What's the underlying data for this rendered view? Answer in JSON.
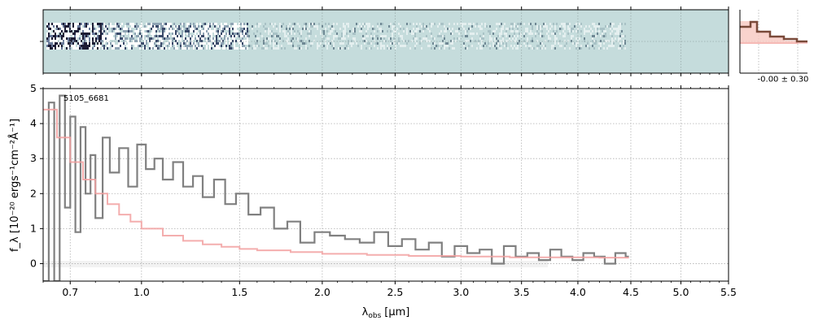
{
  "chart_data": [
    {
      "panel": "2d-spectrum",
      "type": "heatmap",
      "grid": true,
      "colors": {
        "background": "#c5dcdc",
        "bright": "#ffffff",
        "dark": "#1c1c35"
      }
    },
    {
      "panel": "1d-spectrum",
      "type": "line",
      "annotation": "5105_6681",
      "xlabel_main": "λ",
      "xlabel_sub": "obs",
      "xlabel_unit": "[μm]",
      "ylabel": "f_λ [10⁻²⁰ ergs⁻¹cm⁻²Å⁻¹]",
      "xlim": [
        0.6,
        5.5
      ],
      "ylim": [
        -0.5,
        5.0
      ],
      "x_scale": "sqrt",
      "grid": true,
      "x_ticks": [
        0.7,
        1.0,
        1.5,
        2.0,
        2.5,
        3.0,
        3.5,
        4.0,
        4.5,
        5.0,
        5.5
      ],
      "x_tick_labels": [
        "0.7",
        "1.0",
        "1.5",
        "2.0",
        "2.5",
        "3.0",
        "3.5",
        "4.0",
        "4.5",
        "5.0",
        "5.5"
      ],
      "y_ticks": [
        0,
        1,
        2,
        3,
        4,
        5
      ],
      "y_tick_labels": [
        "0",
        "1",
        "2",
        "3",
        "4",
        "5"
      ],
      "series": [
        {
          "role": "data",
          "color": "#808080",
          "x": [
            0.6,
            0.62,
            0.64,
            0.66,
            0.68,
            0.7,
            0.72,
            0.74,
            0.76,
            0.78,
            0.8,
            0.83,
            0.86,
            0.9,
            0.94,
            0.98,
            1.02,
            1.06,
            1.1,
            1.15,
            1.2,
            1.25,
            1.3,
            1.36,
            1.42,
            1.48,
            1.55,
            1.62,
            1.7,
            1.78,
            1.86,
            1.95,
            2.05,
            2.15,
            2.25,
            2.35,
            2.45,
            2.55,
            2.65,
            2.75,
            2.85,
            2.95,
            3.05,
            3.15,
            3.25,
            3.35,
            3.45,
            3.55,
            3.65,
            3.75,
            3.85,
            3.95,
            4.05,
            4.15,
            4.25,
            4.35,
            4.45
          ],
          "y": [
            -0.5,
            4.6,
            -0.5,
            4.8,
            1.6,
            4.2,
            0.9,
            3.9,
            2.0,
            3.1,
            1.3,
            3.6,
            2.6,
            3.3,
            2.2,
            3.4,
            2.7,
            3.0,
            2.4,
            2.9,
            2.2,
            2.5,
            1.9,
            2.4,
            1.7,
            2.0,
            1.4,
            1.6,
            1.0,
            1.2,
            0.6,
            0.9,
            0.8,
            0.7,
            0.6,
            0.9,
            0.5,
            0.7,
            0.4,
            0.6,
            0.2,
            0.5,
            0.3,
            0.4,
            0.0,
            0.5,
            0.2,
            0.3,
            0.1,
            0.4,
            0.2,
            0.1,
            0.3,
            0.2,
            0.0,
            0.3,
            0.2
          ]
        },
        {
          "role": "model",
          "color": "#f2a0a0",
          "x": [
            0.6,
            0.65,
            0.7,
            0.75,
            0.8,
            0.85,
            0.9,
            0.95,
            1.0,
            1.1,
            1.2,
            1.3,
            1.4,
            1.5,
            1.6,
            1.8,
            2.0,
            2.3,
            2.6,
            3.0,
            3.4,
            3.8,
            4.2,
            4.45
          ],
          "y": [
            4.4,
            3.6,
            2.9,
            2.4,
            2.0,
            1.7,
            1.4,
            1.2,
            1.0,
            0.8,
            0.65,
            0.55,
            0.48,
            0.42,
            0.38,
            0.33,
            0.28,
            0.25,
            0.22,
            0.2,
            0.18,
            0.18,
            0.17,
            0.17
          ]
        }
      ]
    },
    {
      "panel": "histogram",
      "type": "bar",
      "label": "-0.00 ± 0.30",
      "color": "#7a4a3a"
    }
  ]
}
